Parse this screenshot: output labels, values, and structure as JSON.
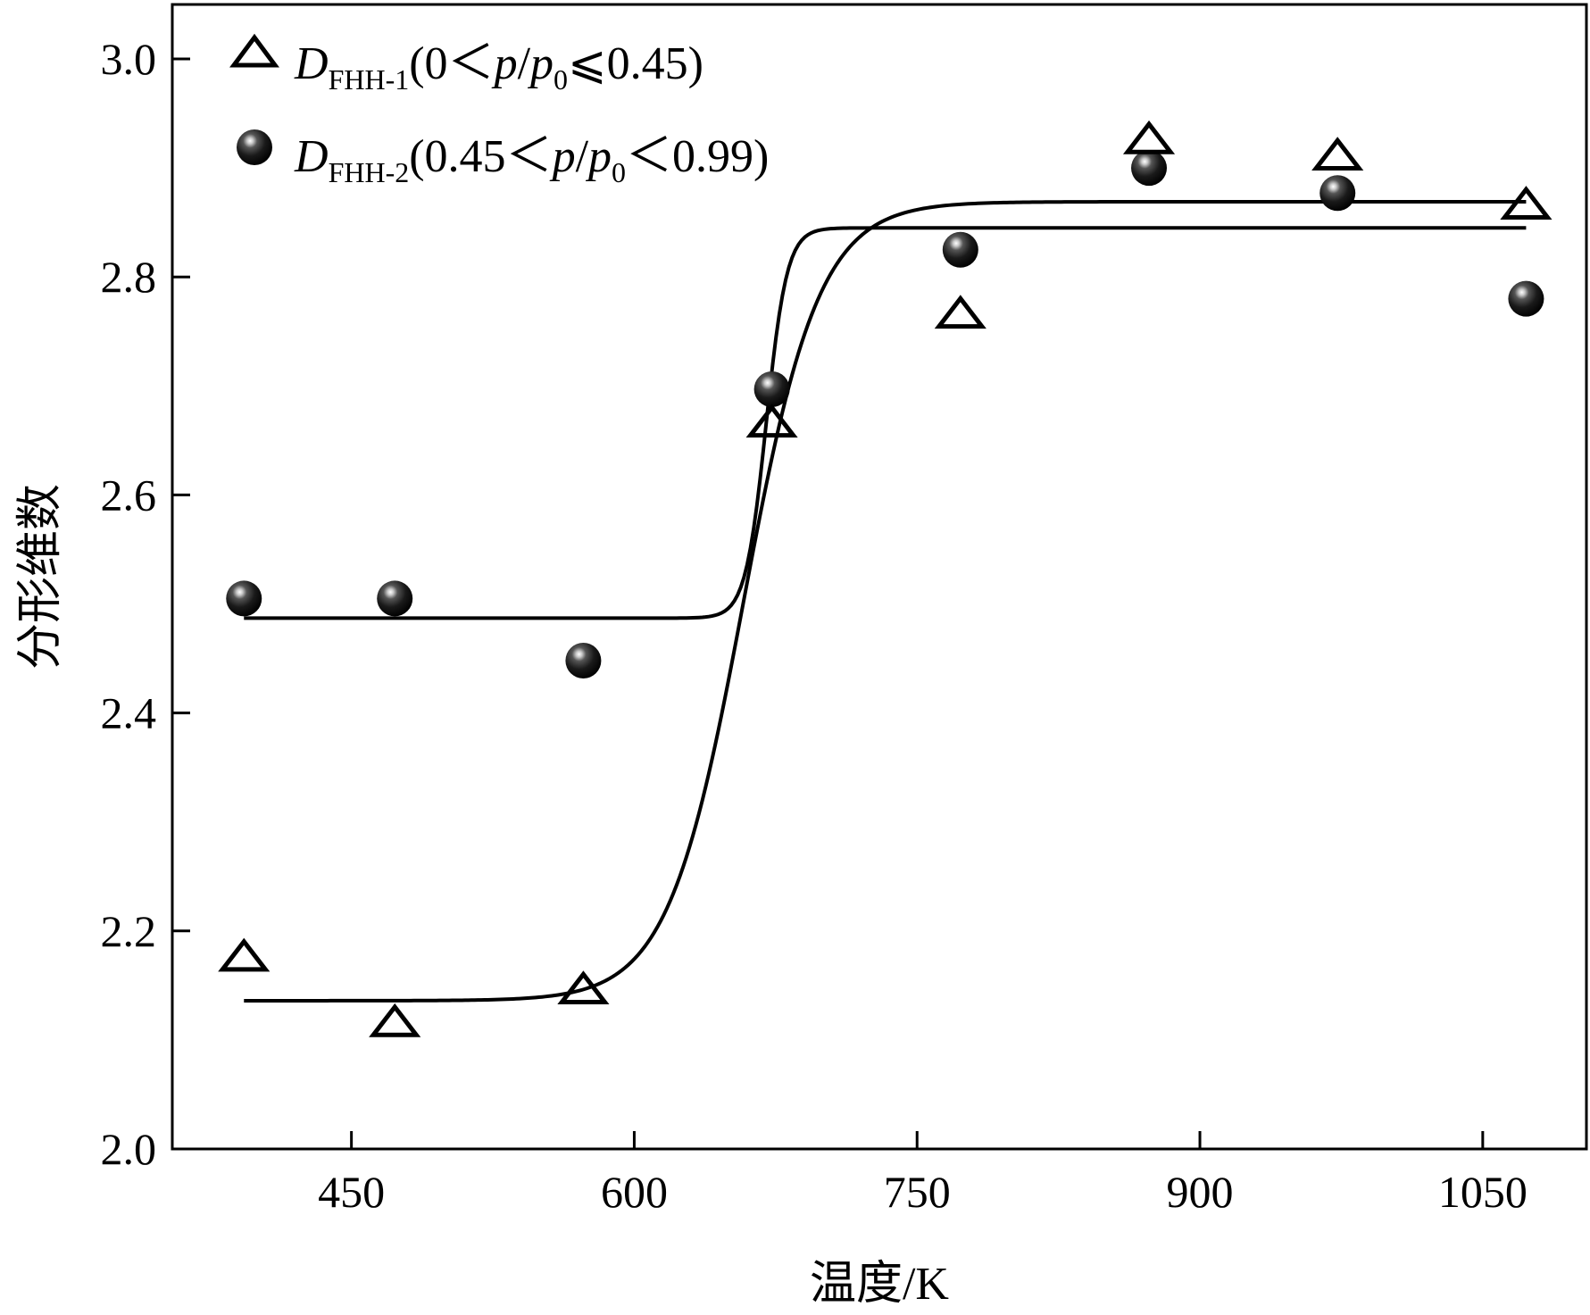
{
  "chart_data": {
    "type": "scatter",
    "xlabel": "温度/K",
    "ylabel": "分形维数",
    "xlim": [
      355,
      1105
    ],
    "ylim": [
      2.0,
      3.05
    ],
    "x_ticks": [
      450,
      600,
      750,
      900,
      1050
    ],
    "x_tick_labels": [
      "450",
      "600",
      "750",
      "900",
      "1050"
    ],
    "y_ticks": [
      2.0,
      2.2,
      2.4,
      2.6,
      2.8,
      3.0
    ],
    "y_tick_labels": [
      "2.0",
      "2.2",
      "2.4",
      "2.6",
      "2.8",
      "3.0"
    ],
    "legend_position": "top-left",
    "grid": false,
    "series": [
      {
        "name": "DFHH-1(0<p/p0≤0.45)",
        "legend": {
          "main": "D",
          "sub": "FHH-1",
          "rest1": "(0＜",
          "p1": "p",
          "slash": "/",
          "p2": "p",
          "sub0": "0",
          "rest2": "⩽0.45)"
        },
        "marker": "open-triangle",
        "x": [
          393,
          473,
          573,
          673,
          773,
          873,
          973,
          1073
        ],
        "y": [
          2.175,
          2.115,
          2.145,
          2.665,
          2.765,
          2.925,
          2.91,
          2.865
        ],
        "fit": {
          "low": 2.136,
          "high": 2.869,
          "x0": 658,
          "k": 20
        }
      },
      {
        "name": "DFHH-2(0.45<p/p0<0.99)",
        "legend": {
          "main": "D",
          "sub": "FHH-2",
          "rest1": "(0.45＜",
          "p1": "p",
          "slash": "/",
          "p2": "p",
          "sub0": "0",
          "rest2": "＜0.99)"
        },
        "marker": "filled-sphere",
        "x": [
          393,
          473,
          573,
          673,
          773,
          873,
          973,
          1073
        ],
        "y": [
          2.505,
          2.505,
          2.448,
          2.697,
          2.825,
          2.9,
          2.877,
          2.78
        ],
        "fit": {
          "low": 2.487,
          "high": 2.845,
          "x0": 670,
          "k": 5.5
        }
      }
    ]
  }
}
